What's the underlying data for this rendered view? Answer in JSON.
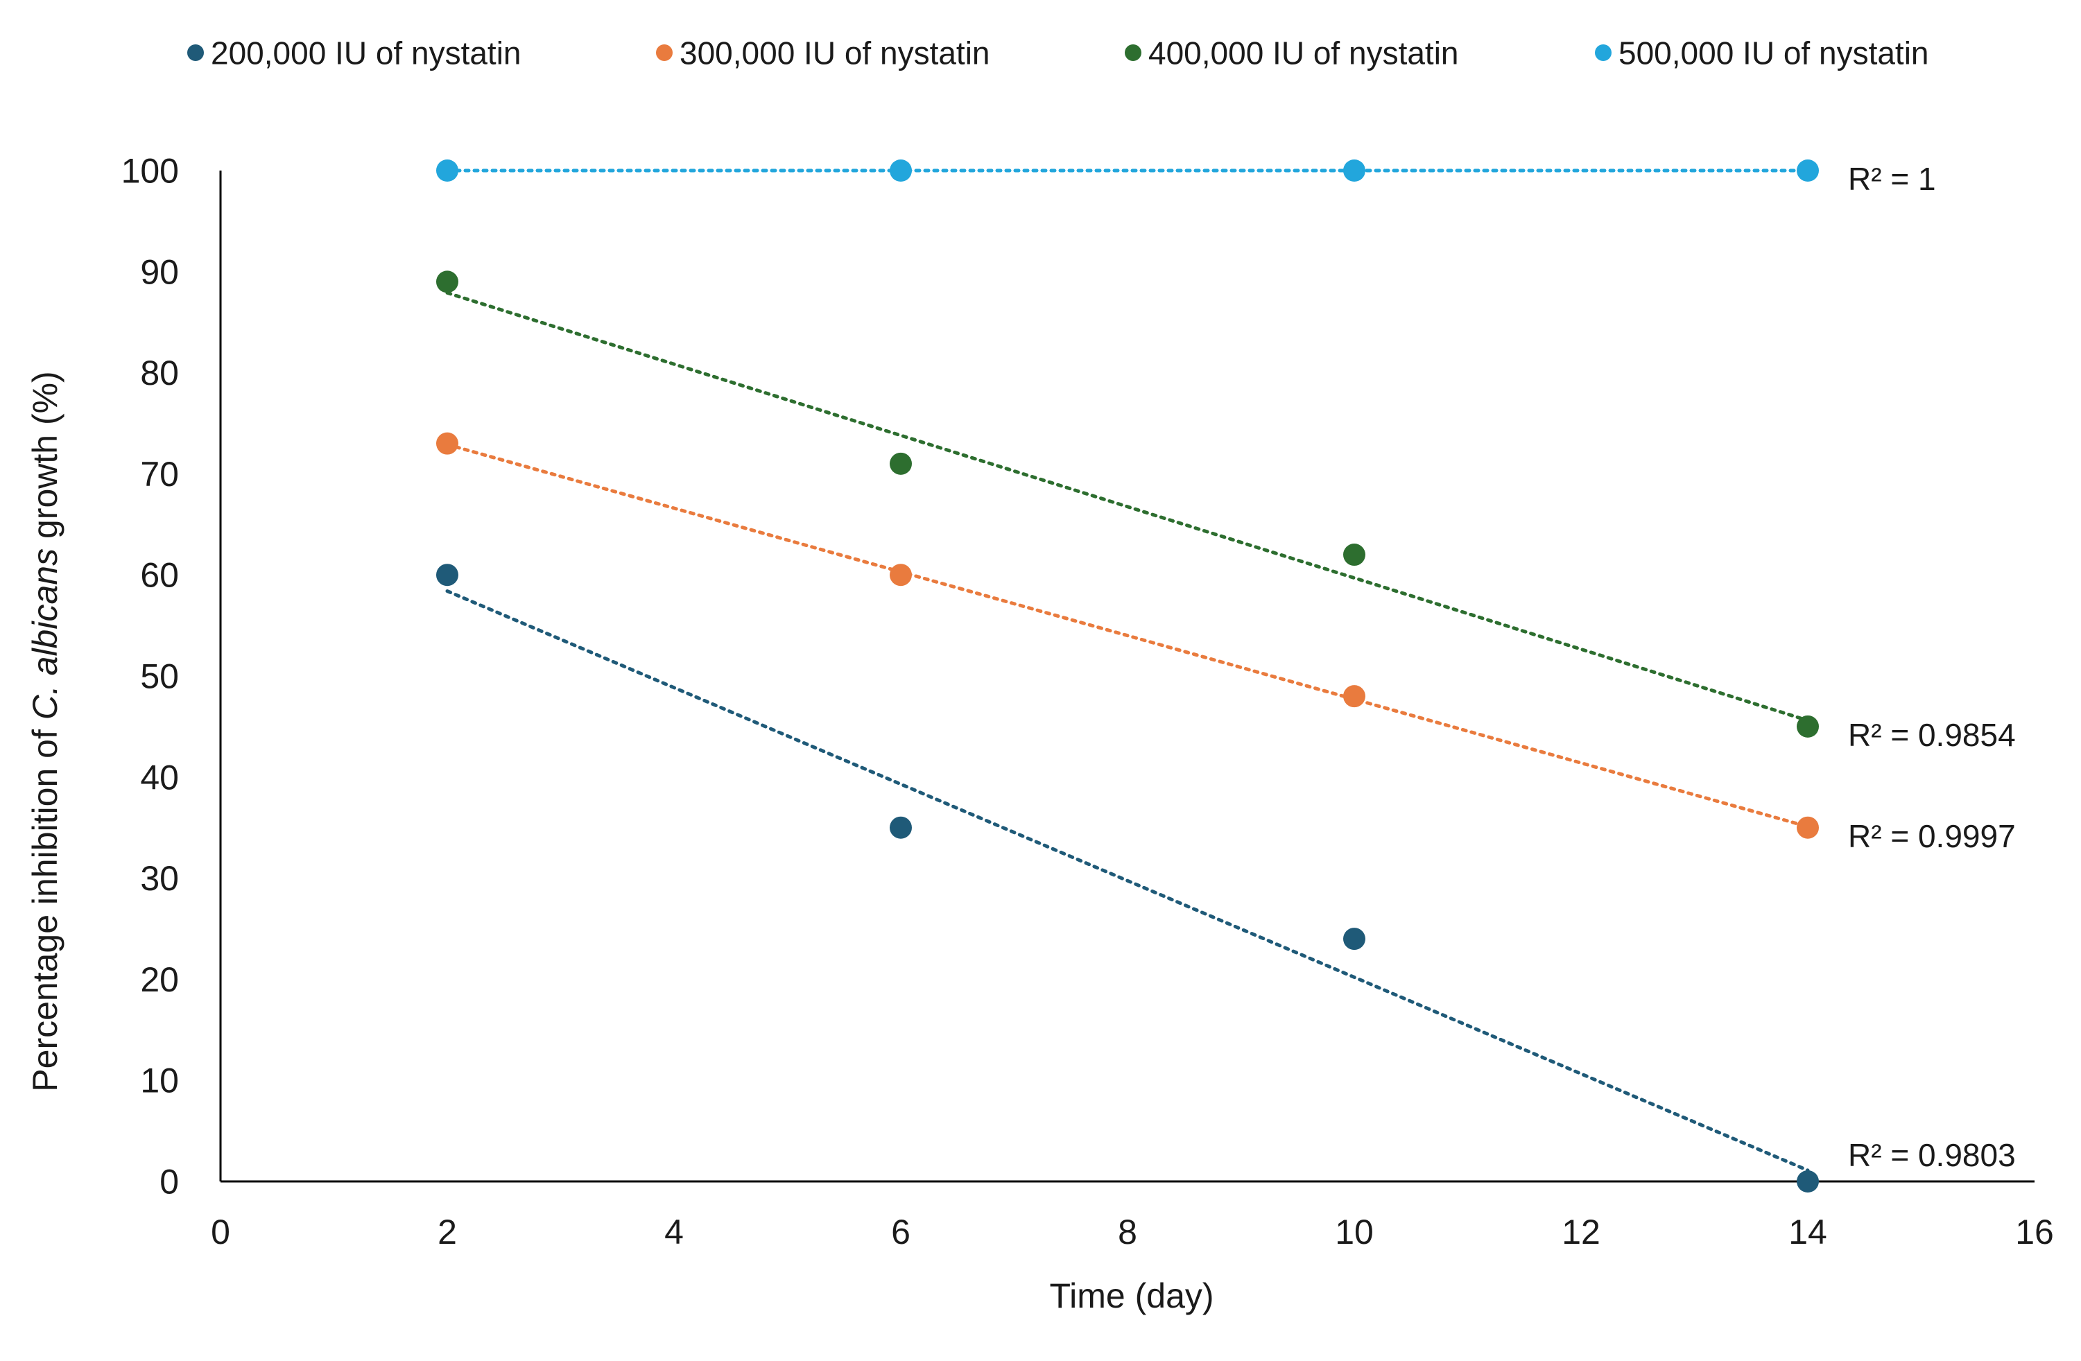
{
  "chart_data": {
    "type": "scatter",
    "title": "",
    "xlabel": "Time (day)",
    "ylabel": {
      "prefix": "Percentage inhibition of ",
      "italic": "C. albicans",
      "suffix": " growth (%)"
    },
    "xlim": [
      0,
      16
    ],
    "ylim": [
      0,
      100
    ],
    "x_ticks": [
      0,
      2,
      4,
      6,
      8,
      10,
      12,
      14,
      16
    ],
    "y_ticks": [
      0,
      10,
      20,
      30,
      40,
      50,
      60,
      70,
      80,
      90,
      100
    ],
    "grid": false,
    "legend_position": "top",
    "x": [
      2,
      6,
      10,
      14
    ],
    "series": [
      {
        "name": "200,000 IU of nystatin",
        "color": "#1f5a78",
        "values": [
          60,
          35,
          24,
          0
        ],
        "trendline": "linear",
        "r2_label": "R² = 0.9803"
      },
      {
        "name": "300,000 IU of nystatin",
        "color": "#e97b3e",
        "values": [
          73,
          60,
          48,
          35
        ],
        "trendline": "linear",
        "r2_label": "R² = 0.9997"
      },
      {
        "name": "400,000 IU of nystatin",
        "color": "#2d6e2f",
        "values": [
          89,
          71,
          62,
          45
        ],
        "trendline": "linear",
        "r2_label": "R² = 0.9854"
      },
      {
        "name": "500,000 IU of nystatin",
        "color": "#22a6dc",
        "values": [
          100,
          100,
          100,
          100
        ],
        "trendline": "linear",
        "r2_label": "R² = 1"
      }
    ]
  }
}
